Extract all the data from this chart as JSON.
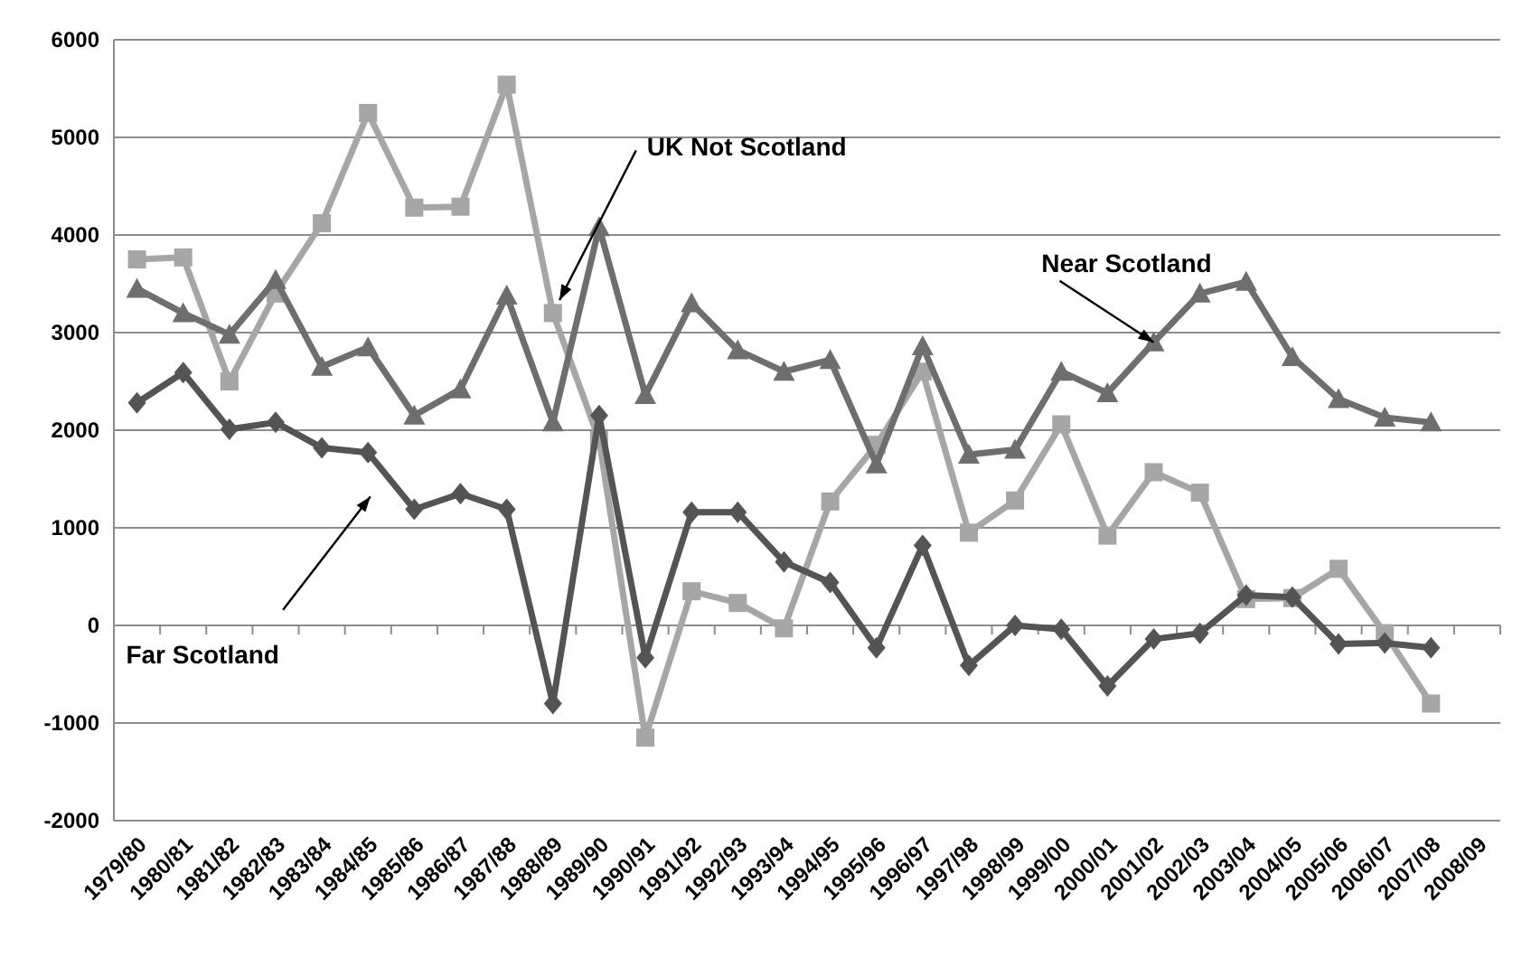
{
  "chart_data": {
    "type": "line",
    "categories": [
      "1979/80",
      "1980/81",
      "1981/82",
      "1982/83",
      "1983/84",
      "1984/85",
      "1985/86",
      "1986/87",
      "1987/88",
      "1988/89",
      "1989/90",
      "1990/91",
      "1991/92",
      "1992/93",
      "1993/94",
      "1994/95",
      "1995/96",
      "1996/97",
      "1997/98",
      "1998/99",
      "1999/00",
      "2000/01",
      "2001/02",
      "2002/03",
      "2003/04",
      "2004/05",
      "2005/06",
      "2006/07",
      "2007/08",
      "2008/09"
    ],
    "series": [
      {
        "color": "#a6a6a6",
        "marker": "square",
        "values": [
          3750,
          3770,
          2500,
          3400,
          4120,
          5250,
          4280,
          4290,
          5540,
          3200,
          1900,
          -1150,
          350,
          230,
          -30,
          1270,
          1850,
          2600,
          950,
          1280,
          2060,
          920,
          1570,
          1360,
          270,
          280,
          580,
          -80,
          -800,
          null
        ]
      },
      {
        "color": "#6e6e6e",
        "marker": "triangle",
        "values": [
          3450,
          3200,
          2980,
          3540,
          2650,
          2850,
          2150,
          2420,
          3380,
          2080,
          4080,
          2360,
          3300,
          2820,
          2600,
          2720,
          1650,
          2860,
          1750,
          1800,
          2600,
          2380,
          2900,
          3400,
          3520,
          2750,
          2320,
          2130,
          2080,
          null
        ]
      },
      {
        "color": "#545454",
        "marker": "diamond",
        "values": [
          2280,
          2590,
          2010,
          2080,
          1820,
          1770,
          1190,
          1350,
          1190,
          -800,
          2150,
          -330,
          1160,
          1160,
          650,
          440,
          -230,
          820,
          -410,
          0,
          -40,
          -620,
          -140,
          -80,
          310,
          290,
          -190,
          -180,
          -230,
          null
        ]
      }
    ],
    "annotations": [
      {
        "text": "UK Not Scotland",
        "x": "1988/89",
        "y": 3200
      },
      {
        "text": "Near Scotland",
        "x": "2001/02",
        "y": 2900
      },
      "Far Scotland"
    ],
    "ylim": [
      -2000,
      6000
    ],
    "yticks": [
      -2000,
      -1000,
      0,
      1000,
      2000,
      3000,
      4000,
      5000,
      6000
    ],
    "grid": "y",
    "line_style": "solid"
  }
}
